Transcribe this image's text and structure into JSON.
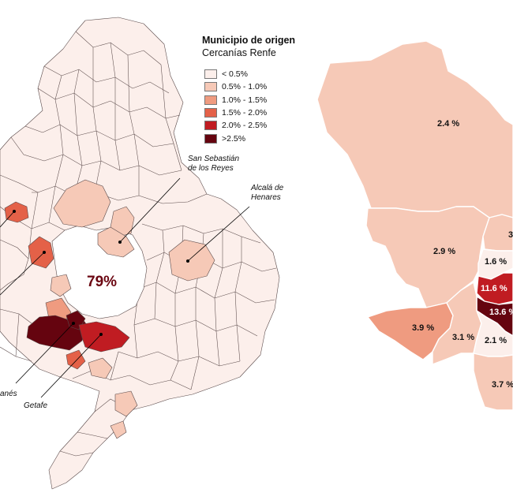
{
  "legend": {
    "title": "Municipio de origen",
    "subtitle": "Cercanías Renfe",
    "items": [
      {
        "label": "< 0.5%",
        "color": "#fcefeb"
      },
      {
        "label": "0.5% - 1.0%",
        "color": "#f6c9b7"
      },
      {
        "label": "1.0% - 1.5%",
        "color": "#ef9b80"
      },
      {
        "label": "1.5% - 2.0%",
        "color": "#e46148"
      },
      {
        "label": "2.0% - 2.5%",
        "color": "#c01c22"
      },
      {
        "label": ">2.5%",
        "color": "#65040f"
      }
    ]
  },
  "region_map": {
    "main_share": "79%",
    "callouts": {
      "san_sebastian_line1": "San Sebastián",
      "san_sebastian_line2": "de los Reyes",
      "alcala_line1": "Alcalá de",
      "alcala_line2": "Henares",
      "leganes": "anés",
      "getafe": "Getafe"
    }
  },
  "city_map": {
    "districts": [
      {
        "name": "north",
        "label": "2.4 %",
        "color": "#f6c9b7"
      },
      {
        "name": "west",
        "label": "2.9 %",
        "color": "#f6c9b7"
      },
      {
        "name": "center-west",
        "label": "1.6 %",
        "color": "#fcefeb"
      },
      {
        "name": "east-partial",
        "label": "3",
        "color": "#f6c9b7"
      },
      {
        "name": "center",
        "label": "11.6 %",
        "color": "#c01c22"
      },
      {
        "name": "south-center",
        "label": "13.6 %",
        "color": "#65040f"
      },
      {
        "name": "southwest",
        "label": "3.9 %",
        "color": "#ef9b80"
      },
      {
        "name": "south-west-inner",
        "label": "3.1 %",
        "color": "#f6c9b7"
      },
      {
        "name": "south-inner",
        "label": "2.1 %",
        "color": "#fcefeb"
      },
      {
        "name": "south",
        "label": "3.7 %",
        "color": "#f6c9b7"
      }
    ]
  }
}
